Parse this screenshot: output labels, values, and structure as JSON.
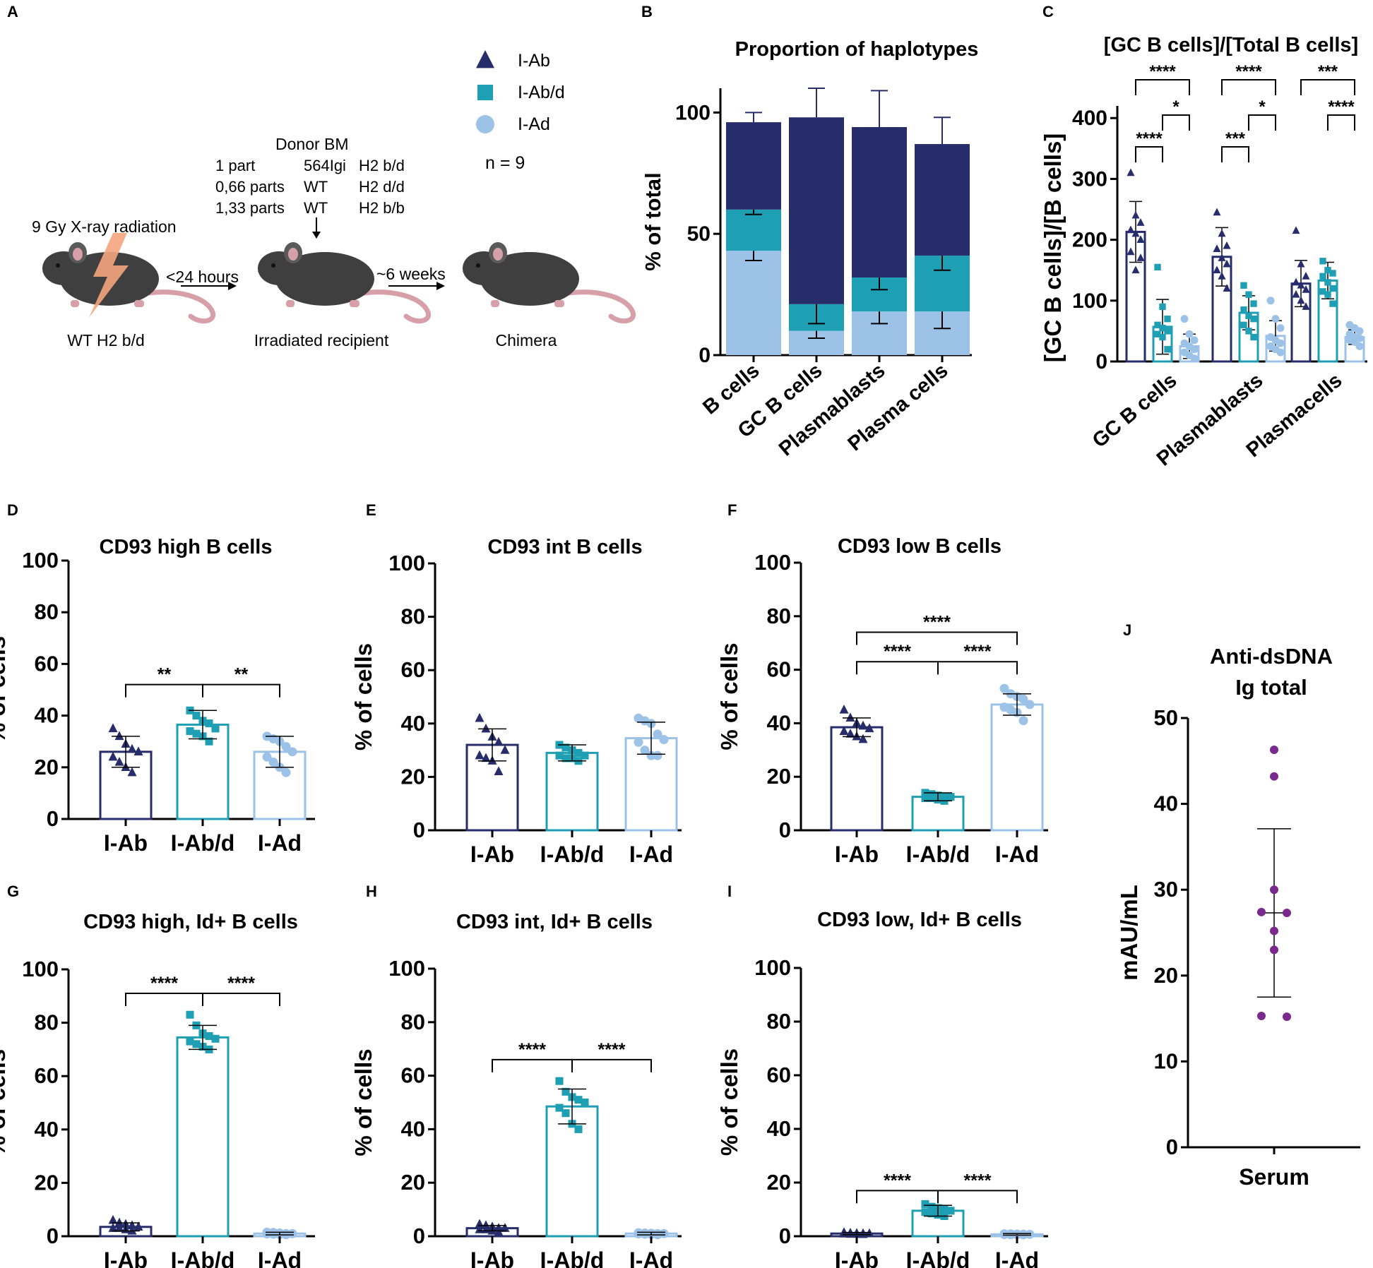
{
  "colors": {
    "Ab": "#272d6b",
    "Abd": "#1e9fb3",
    "Ad": "#9cc2e8",
    "purple": "#7a2a8c",
    "axis": "#000000",
    "mouse": "#3f3f3f",
    "bolt": "#f4a57c",
    "tail": "#d7a0a8"
  },
  "panel_letters": [
    "A",
    "B",
    "C",
    "D",
    "E",
    "F",
    "G",
    "H",
    "I",
    "J"
  ],
  "schematic": {
    "legend": [
      {
        "label": "I-Ab",
        "shape": "triangle",
        "color": "Ab"
      },
      {
        "label": "I-Ab/d",
        "shape": "square",
        "color": "Abd"
      },
      {
        "label": "I-Ad",
        "shape": "circle",
        "color": "Ad"
      }
    ],
    "n_label": "n = 9",
    "donor_title": "Donor BM",
    "donor_rows": [
      [
        "1 part",
        "564Igi",
        "H2 b/d"
      ],
      [
        "0,66 parts",
        "WT",
        "H2 d/d"
      ],
      [
        "1,33 parts",
        "WT",
        "H2 b/b"
      ]
    ],
    "radiation_label": "9 Gy X-ray radiation",
    "arrow1_label": "<24 hours",
    "arrow2_label": "~6 weeks",
    "mouse_labels": [
      "WT H2 b/d",
      "Irradiated recipient",
      "Chimera"
    ]
  },
  "chart_data": [
    {
      "id": "B",
      "type": "bar",
      "stacked": true,
      "title": "Proportion of haplotypes",
      "ylabel": "% of total",
      "ylim": [
        0,
        110
      ],
      "yticks": [
        0,
        50,
        100
      ],
      "categories": [
        "B cells",
        "GC B cells",
        "Plasmablasts",
        "Plasma cells"
      ],
      "series": [
        {
          "name": "I-Ad",
          "color": "Ad",
          "values": [
            43,
            10,
            18,
            18
          ],
          "err": [
            4,
            3,
            5,
            7
          ]
        },
        {
          "name": "I-Ab/d",
          "color": "Abd",
          "values": [
            17,
            11,
            14,
            23
          ],
          "err": [
            2,
            8,
            5,
            6
          ]
        },
        {
          "name": "I-Ab",
          "color": "Ab",
          "values": [
            36,
            77,
            62,
            46
          ],
          "err": [
            4,
            12,
            15,
            11
          ]
        }
      ]
    },
    {
      "id": "C",
      "type": "bar",
      "grouped": true,
      "title": "[GC B cells]/[Total B cells]",
      "ylabel": "[GC B cells]/[B cells]",
      "ylim": [
        0,
        420
      ],
      "yticks": [
        0,
        100,
        200,
        300,
        400
      ],
      "categories": [
        "GC B cells",
        "Plasmablasts",
        "Plasmacells"
      ],
      "series": [
        {
          "name": "I-Ab",
          "color": "Ab",
          "values": [
            213,
            172,
            128
          ],
          "sd": [
            50,
            48,
            38
          ],
          "points": [
            [
              310,
              240,
              228,
              216,
              210,
              200,
              180,
              150,
              170
            ],
            [
              245,
              210,
              190,
              185,
              170,
              160,
              150,
              140,
              120
            ],
            [
              215,
              160,
              140,
              130,
              125,
              118,
              110,
              100,
              90
            ]
          ]
        },
        {
          "name": "I-Ab/d",
          "color": "Abd",
          "values": [
            57,
            80,
            133
          ],
          "sd": [
            45,
            28,
            30
          ],
          "points": [
            [
              155,
              90,
              70,
              60,
              55,
              50,
              45,
              40,
              20
            ],
            [
              125,
              110,
              95,
              85,
              75,
              70,
              60,
              50,
              40
            ],
            [
              165,
              150,
              145,
              140,
              130,
              120,
              115,
              110,
              95
            ]
          ]
        },
        {
          "name": "I-Ad",
          "color": "Ad",
          "values": [
            25,
            42,
            40
          ],
          "sd": [
            20,
            25,
            12
          ],
          "points": [
            [
              70,
              45,
              35,
              30,
              25,
              20,
              15,
              10,
              5
            ],
            [
              100,
              70,
              55,
              40,
              35,
              30,
              25,
              20,
              15
            ],
            [
              60,
              55,
              50,
              45,
              40,
              38,
              35,
              32,
              25
            ]
          ]
        }
      ],
      "significance": [
        {
          "label": "****",
          "from": [
            0,
            0
          ],
          "to": [
            0,
            2
          ],
          "level": 1
        },
        {
          "label": "*",
          "from": [
            0,
            1
          ],
          "to": [
            0,
            2
          ],
          "level": 0.5
        },
        {
          "label": "****",
          "from": [
            0,
            0
          ],
          "to": [
            0,
            1
          ],
          "level": 0
        },
        {
          "label": "****",
          "from": [
            1,
            0
          ],
          "to": [
            1,
            2
          ],
          "level": 1
        },
        {
          "label": "*",
          "from": [
            1,
            1
          ],
          "to": [
            1,
            2
          ],
          "level": 0.5
        },
        {
          "label": "***",
          "from": [
            1,
            0
          ],
          "to": [
            1,
            1
          ],
          "level": 0
        },
        {
          "label": "***",
          "from": [
            2,
            0
          ],
          "to": [
            2,
            2
          ],
          "level": 1
        },
        {
          "label": "****",
          "from": [
            2,
            1
          ],
          "to": [
            2,
            2
          ],
          "level": 0.5
        }
      ]
    },
    {
      "id": "D",
      "type": "bar",
      "title": "CD93 high B cells",
      "ylabel": "% of cells",
      "ylim": [
        0,
        100
      ],
      "yticks": [
        0,
        20,
        40,
        60,
        80,
        100
      ],
      "categories": [
        "I-Ab",
        "I-Ab/d",
        "I-Ad"
      ],
      "values": [
        26,
        36.5,
        26
      ],
      "sd": [
        6,
        5.5,
        6
      ],
      "points": [
        [
          35,
          32,
          29,
          27,
          26,
          24,
          22,
          20,
          18
        ],
        [
          42,
          40,
          38,
          37,
          35,
          34,
          33,
          32,
          30
        ],
        [
          32,
          31,
          30,
          28,
          26,
          24,
          22,
          20,
          18
        ]
      ],
      "significance": [
        {
          "label": "**",
          "from": 0,
          "to": 1,
          "y": 52
        },
        {
          "label": "**",
          "from": 1,
          "to": 2,
          "y": 52
        }
      ]
    },
    {
      "id": "E",
      "type": "bar",
      "title": "CD93 int B cells",
      "ylabel": "% of cells",
      "ylim": [
        0,
        100
      ],
      "yticks": [
        0,
        20,
        40,
        60,
        80,
        100
      ],
      "categories": [
        "I-Ab",
        "I-Ab/d",
        "I-Ad"
      ],
      "values": [
        32,
        29,
        34.5
      ],
      "sd": [
        6,
        3,
        6
      ],
      "points": [
        [
          42,
          38,
          35,
          33,
          30,
          28,
          27,
          26,
          22
        ],
        [
          32,
          31,
          30,
          29,
          28,
          28,
          27,
          27,
          26
        ],
        [
          42,
          41,
          40,
          36,
          34,
          33,
          30,
          28,
          28
        ]
      ],
      "significance": []
    },
    {
      "id": "F",
      "type": "bar",
      "title": "CD93 low B cells",
      "ylabel": "% of cells",
      "ylim": [
        0,
        100
      ],
      "yticks": [
        0,
        20,
        40,
        60,
        80,
        100
      ],
      "categories": [
        "I-Ab",
        "I-Ab/d",
        "I-Ad"
      ],
      "values": [
        38.5,
        12.5,
        47
      ],
      "sd": [
        3.5,
        1.5,
        4
      ],
      "points": [
        [
          45,
          42,
          40,
          39,
          38,
          37,
          36,
          35,
          34
        ],
        [
          14,
          13.5,
          13,
          12.5,
          12.5,
          12,
          12,
          11.5,
          11
        ],
        [
          53,
          51,
          50,
          49,
          47,
          46,
          45,
          44,
          41
        ]
      ],
      "significance": [
        {
          "label": "****",
          "from": 0,
          "to": 1,
          "y": 63
        },
        {
          "label": "****",
          "from": 1,
          "to": 2,
          "y": 63
        },
        {
          "label": "****",
          "from": 0,
          "to": 2,
          "y": 74
        }
      ]
    },
    {
      "id": "G",
      "type": "bar",
      "title": "CD93 high, Id+ B cells",
      "ylabel": "% of cells",
      "ylim": [
        0,
        100
      ],
      "yticks": [
        0,
        20,
        40,
        60,
        80,
        100
      ],
      "categories": [
        "I-Ab",
        "I-Ab/d",
        "I-Ad"
      ],
      "values": [
        3.5,
        74.5,
        1
      ],
      "sd": [
        1.5,
        4.5,
        0.5
      ],
      "points": [
        [
          6,
          5,
          4.5,
          4,
          3.5,
          3,
          3,
          2.5,
          2
        ],
        [
          83,
          79,
          76,
          75,
          74,
          73,
          72,
          71,
          70
        ],
        [
          1.5,
          1.4,
          1.2,
          1,
          1,
          0.9,
          0.8,
          0.7,
          0.6
        ]
      ],
      "significance": [
        {
          "label": "****",
          "from": 0,
          "to": 1,
          "y": 91
        },
        {
          "label": "****",
          "from": 1,
          "to": 2,
          "y": 91
        }
      ]
    },
    {
      "id": "H",
      "type": "bar",
      "title": "CD93 int, Id+ B cells",
      "ylabel": "% of cells",
      "ylim": [
        0,
        100
      ],
      "yticks": [
        0,
        20,
        40,
        60,
        80,
        100
      ],
      "categories": [
        "I-Ab",
        "I-Ab/d",
        "I-Ad"
      ],
      "values": [
        3,
        48.5,
        1
      ],
      "sd": [
        1,
        6.5,
        0.5
      ],
      "points": [
        [
          4.5,
          4,
          3.5,
          3,
          3,
          2.5,
          2.5,
          2,
          1.5
        ],
        [
          58,
          54,
          52,
          51,
          50,
          48,
          46,
          42,
          40
        ],
        [
          1.3,
          1.2,
          1.1,
          1,
          1,
          0.9,
          0.8,
          0.7,
          0.6
        ]
      ],
      "significance": [
        {
          "label": "****",
          "from": 0,
          "to": 1,
          "y": 66
        },
        {
          "label": "****",
          "from": 1,
          "to": 2,
          "y": 66
        }
      ]
    },
    {
      "id": "I",
      "type": "bar",
      "title": "CD93 low, Id+ B cells",
      "ylabel": "% of cells",
      "ylim": [
        0,
        100
      ],
      "yticks": [
        0,
        20,
        40,
        60,
        80,
        100
      ],
      "categories": [
        "I-Ab",
        "I-Ab/d",
        "I-Ad"
      ],
      "values": [
        1,
        9.5,
        0.7
      ],
      "sd": [
        0.4,
        2,
        0.3
      ],
      "points": [
        [
          1.4,
          1.2,
          1.1,
          1,
          1,
          0.9,
          0.8,
          0.8,
          0.7
        ],
        [
          12,
          11,
          10.5,
          10,
          9.5,
          9,
          8.5,
          8,
          7.5
        ],
        [
          0.9,
          0.85,
          0.8,
          0.75,
          0.7,
          0.65,
          0.6,
          0.6,
          0.55
        ]
      ],
      "significance": [
        {
          "label": "****",
          "from": 0,
          "to": 1,
          "y": 17
        },
        {
          "label": "****",
          "from": 1,
          "to": 2,
          "y": 17
        }
      ]
    },
    {
      "id": "J",
      "type": "scatter",
      "title_lines": [
        "Anti-dsDNA",
        "Ig total"
      ],
      "ylabel": "mAU/mL",
      "ylim": [
        0,
        50
      ],
      "yticks": [
        0,
        10,
        20,
        30,
        40,
        50
      ],
      "categories": [
        "Serum"
      ],
      "points": [
        46.3,
        43.2,
        30,
        27.4,
        27.3,
        25.2,
        23,
        15.3,
        15.2
      ],
      "mean": 27.3,
      "sd": 9.8
    }
  ]
}
